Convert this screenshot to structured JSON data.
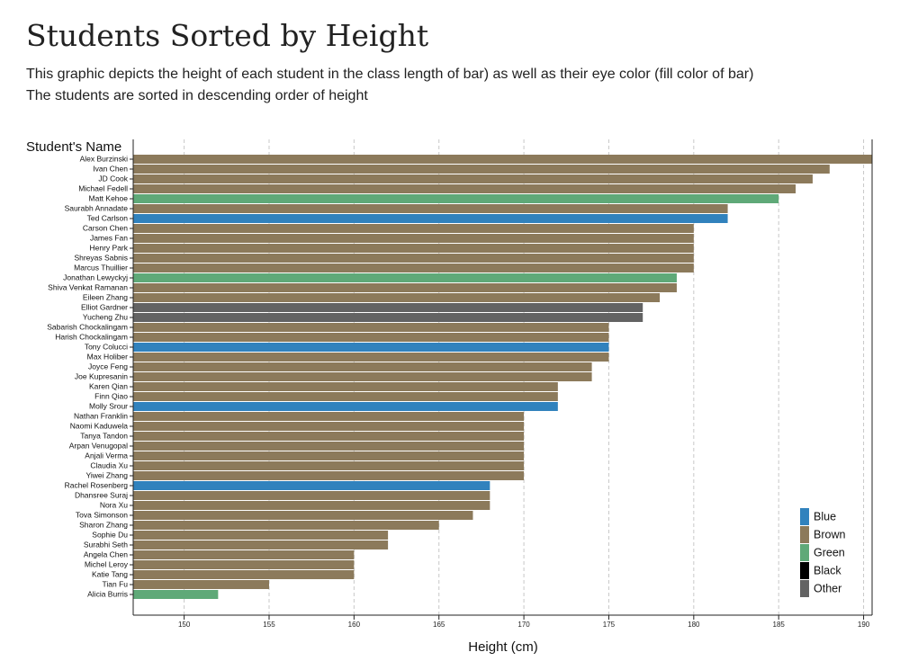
{
  "page": {
    "title": "Students Sorted by Height",
    "subtitle_line1": "This graphic depicts the height of each student in the class length of bar) as well as their eye color (fill color of bar)",
    "subtitle_line2": "The students are sorted in descending order of height"
  },
  "chart_data": {
    "type": "bar",
    "orientation": "horizontal",
    "ylabel": "Student's Name",
    "xlabel": "Height (cm)",
    "xlim": [
      147,
      190.5
    ],
    "xticks": [
      150,
      155,
      160,
      165,
      170,
      175,
      180,
      185,
      190
    ],
    "grid": "vertical dashed",
    "legend_position": "bottom-right",
    "legend": [
      {
        "label": "Blue",
        "color": "#3182bd"
      },
      {
        "label": "Brown",
        "color": "#8c7a5b"
      },
      {
        "label": "Green",
        "color": "#5fa978"
      },
      {
        "label": "Black",
        "color": "#000000"
      },
      {
        "label": "Other",
        "color": "#636363"
      }
    ],
    "students": [
      {
        "name": "Alex Burzinski",
        "height": 191,
        "eye": "Brown"
      },
      {
        "name": "Ivan Chen",
        "height": 188,
        "eye": "Brown"
      },
      {
        "name": "JD Cook",
        "height": 187,
        "eye": "Brown"
      },
      {
        "name": "Michael Fedell",
        "height": 186,
        "eye": "Brown"
      },
      {
        "name": "Matt Kehoe",
        "height": 185,
        "eye": "Green"
      },
      {
        "name": "Saurabh Annadate",
        "height": 182,
        "eye": "Brown"
      },
      {
        "name": "Ted Carlson",
        "height": 182,
        "eye": "Blue"
      },
      {
        "name": "Carson Chen",
        "height": 180,
        "eye": "Brown"
      },
      {
        "name": "James Fan",
        "height": 180,
        "eye": "Brown"
      },
      {
        "name": "Henry Park",
        "height": 180,
        "eye": "Brown"
      },
      {
        "name": "Shreyas Sabnis",
        "height": 180,
        "eye": "Brown"
      },
      {
        "name": "Marcus Thuillier",
        "height": 180,
        "eye": "Brown"
      },
      {
        "name": "Jonathan Lewyckyj",
        "height": 179,
        "eye": "Green"
      },
      {
        "name": "Shiva Venkat Ramanan",
        "height": 179,
        "eye": "Brown"
      },
      {
        "name": "Eileen Zhang",
        "height": 178,
        "eye": "Brown"
      },
      {
        "name": "Elliot Gardner",
        "height": 177,
        "eye": "Other"
      },
      {
        "name": "Yucheng Zhu",
        "height": 177,
        "eye": "Other"
      },
      {
        "name": "Sabarish Chockalingam",
        "height": 175,
        "eye": "Brown"
      },
      {
        "name": "Harish Chockalingam",
        "height": 175,
        "eye": "Brown"
      },
      {
        "name": "Tony Colucci",
        "height": 175,
        "eye": "Blue"
      },
      {
        "name": "Max Holiber",
        "height": 175,
        "eye": "Brown"
      },
      {
        "name": "Joyce Feng",
        "height": 174,
        "eye": "Brown"
      },
      {
        "name": "Joe Kupresanin",
        "height": 174,
        "eye": "Brown"
      },
      {
        "name": "Karen Qian",
        "height": 172,
        "eye": "Brown"
      },
      {
        "name": "Finn Qiao",
        "height": 172,
        "eye": "Brown"
      },
      {
        "name": "Molly Srour",
        "height": 172,
        "eye": "Blue"
      },
      {
        "name": "Nathan Franklin",
        "height": 170,
        "eye": "Brown"
      },
      {
        "name": "Naomi Kaduwela",
        "height": 170,
        "eye": "Brown"
      },
      {
        "name": "Tanya Tandon",
        "height": 170,
        "eye": "Brown"
      },
      {
        "name": "Arpan Venugopal",
        "height": 170,
        "eye": "Brown"
      },
      {
        "name": "Anjali Verma",
        "height": 170,
        "eye": "Brown"
      },
      {
        "name": "Claudia Xu",
        "height": 170,
        "eye": "Brown"
      },
      {
        "name": "Yiwei Zhang",
        "height": 170,
        "eye": "Brown"
      },
      {
        "name": "Rachel Rosenberg",
        "height": 168,
        "eye": "Blue"
      },
      {
        "name": "Dhansree Suraj",
        "height": 168,
        "eye": "Brown"
      },
      {
        "name": "Nora Xu",
        "height": 168,
        "eye": "Brown"
      },
      {
        "name": "Tova Simonson",
        "height": 167,
        "eye": "Brown"
      },
      {
        "name": "Sharon Zhang",
        "height": 165,
        "eye": "Brown"
      },
      {
        "name": "Sophie Du",
        "height": 162,
        "eye": "Brown"
      },
      {
        "name": "Surabhi Seth",
        "height": 162,
        "eye": "Brown"
      },
      {
        "name": "Angela Chen",
        "height": 160,
        "eye": "Brown"
      },
      {
        "name": "Michel Leroy",
        "height": 160,
        "eye": "Brown"
      },
      {
        "name": "Katie Tang",
        "height": 160,
        "eye": "Brown"
      },
      {
        "name": "Tian Fu",
        "height": 155,
        "eye": "Brown"
      },
      {
        "name": "Alicia Burris",
        "height": 152,
        "eye": "Green"
      }
    ]
  }
}
